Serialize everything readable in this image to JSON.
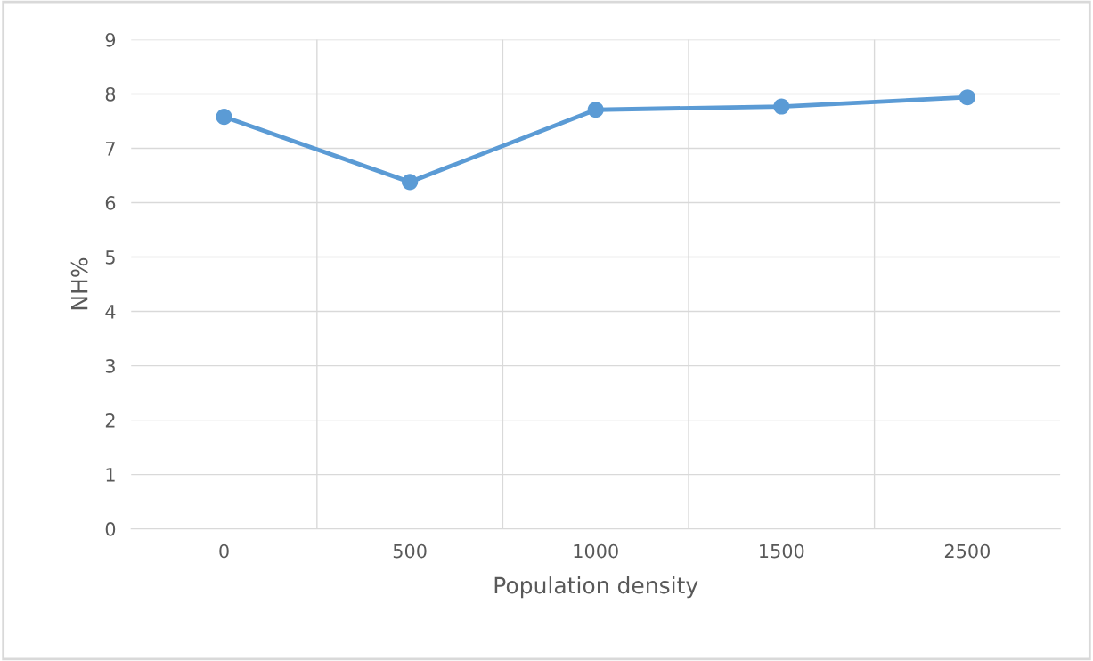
{
  "chart_data": {
    "type": "line",
    "xlabel": "Population density",
    "ylabel": "NH%",
    "categories": [
      "0",
      "500",
      "1000",
      "1500",
      "2500"
    ],
    "series": [
      {
        "color": "#5b9bd5",
        "values": [
          7.58,
          6.38,
          7.71,
          7.77,
          7.94
        ]
      }
    ],
    "ylim": [
      0,
      9
    ],
    "yticks": [
      0,
      1,
      2,
      3,
      4,
      5,
      6,
      7,
      8,
      9
    ],
    "grid": true,
    "marker": "circle",
    "line_style": "solid"
  }
}
